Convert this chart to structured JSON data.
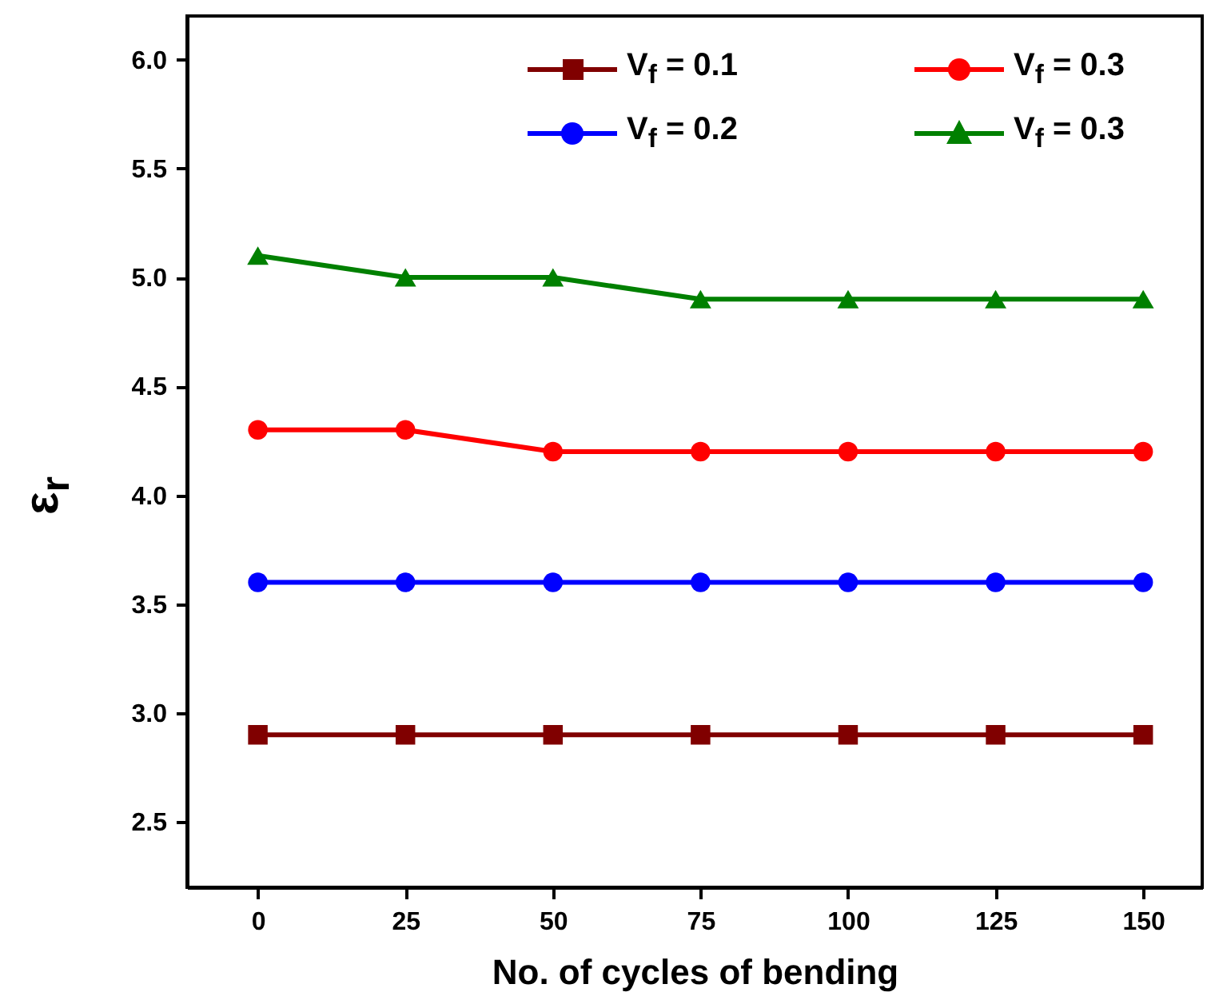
{
  "chart_data": {
    "type": "line",
    "xlabel": "No. of cycles of bending",
    "ylabel": "ε$_{r}$",
    "x": [
      0,
      25,
      50,
      75,
      100,
      125,
      150
    ],
    "series": [
      {
        "name": "V$_{f}$ = 0.1",
        "color": "#800000",
        "marker": "square",
        "values": [
          2.9,
          2.9,
          2.9,
          2.9,
          2.9,
          2.9,
          2.9
        ]
      },
      {
        "name": "V$_{f}$ = 0.2",
        "color": "#0000ff",
        "marker": "circle",
        "values": [
          3.6,
          3.6,
          3.6,
          3.6,
          3.6,
          3.6,
          3.6
        ]
      },
      {
        "name": "V$_{f}$ = 0.3",
        "color": "#ff0000",
        "marker": "circle",
        "values": [
          4.3,
          4.3,
          4.2,
          4.2,
          4.2,
          4.2,
          4.2
        ]
      },
      {
        "name": "V$_{f}$ = 0.3",
        "color": "#008000",
        "marker": "triangle",
        "values": [
          5.1,
          5.0,
          5.0,
          4.9,
          4.9,
          4.9,
          4.9
        ]
      }
    ],
    "xlim": [
      -12,
      160
    ],
    "xticks": [
      0,
      25,
      50,
      75,
      100,
      125,
      150
    ],
    "ylim": [
      2.2,
      6.2
    ],
    "yticks": [
      {
        "value": 2.5,
        "label": "2.5"
      },
      {
        "value": 3,
        "label": "3.0"
      },
      {
        "value": 3.5,
        "label": "3.5"
      },
      {
        "value": 4,
        "label": "4.0"
      },
      {
        "value": 4.5,
        "label": "4.5"
      },
      {
        "value": 5,
        "label": "5.0"
      },
      {
        "value": 5.5,
        "label": "5.5"
      },
      {
        "value": 6,
        "label": "6.0"
      }
    ],
    "grid": false,
    "legend": "top right",
    "line_style": "solid"
  }
}
